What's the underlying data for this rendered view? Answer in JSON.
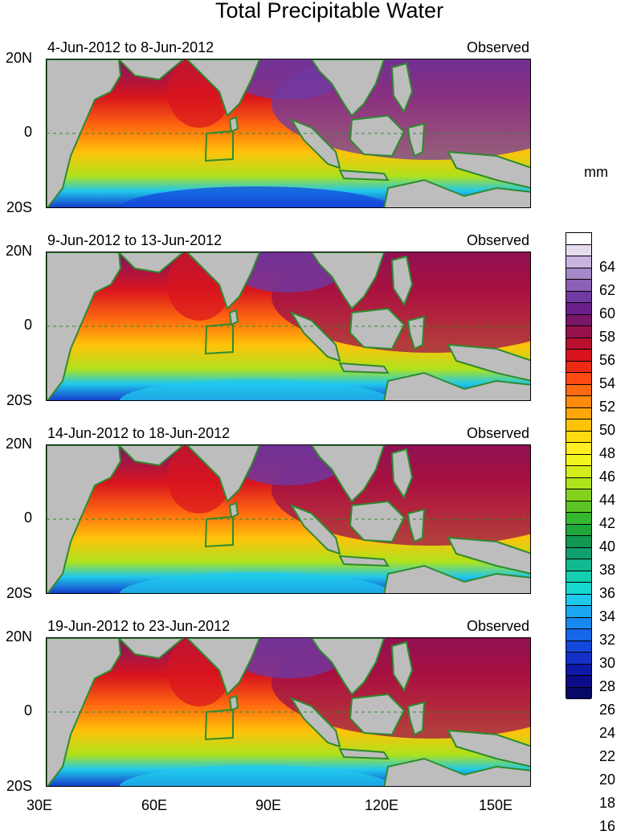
{
  "title": "Total Precipitable Water",
  "units": "mm",
  "panels": [
    {
      "period": "4-Jun-2012 to 8-Jun-2012",
      "label": "Observed"
    },
    {
      "period": "9-Jun-2012 to 13-Jun-2012",
      "label": "Observed"
    },
    {
      "period": "14-Jun-2012 to 18-Jun-2012",
      "label": "Observed"
    },
    {
      "period": "19-Jun-2012 to 23-Jun-2012",
      "label": "Observed"
    }
  ],
  "lat_labels": [
    "20N",
    "0",
    "20S"
  ],
  "lon_labels": [
    "30E",
    "60E",
    "90E",
    "120E",
    "150E"
  ],
  "colorbar_labels": [
    "64",
    "62",
    "60",
    "58",
    "56",
    "54",
    "52",
    "50",
    "48",
    "46",
    "44",
    "42",
    "40",
    "38",
    "36",
    "34",
    "32",
    "30",
    "28",
    "26",
    "24",
    "22",
    "20",
    "18",
    "16"
  ],
  "colors": {
    "land": "#bdbdbd",
    "coast": "#2e8b2e",
    "ramp": [
      "#ffffff",
      "#e6dcf0",
      "#c9b3e0",
      "#a689c9",
      "#8a5fb6",
      "#6f3aa2",
      "#6a1f8a",
      "#7a1666",
      "#98104c",
      "#b8102f",
      "#d8141e",
      "#ee2a15",
      "#ff4a12",
      "#ff6a10",
      "#ff8a0e",
      "#ffa60c",
      "#ffc20a",
      "#ffdc10",
      "#ffee22",
      "#f2f51e",
      "#d4ee1c",
      "#aee21c",
      "#84d21e",
      "#5cc424",
      "#36b82e",
      "#1ea83c",
      "#129850",
      "#10a070",
      "#12b890",
      "#14d0b0",
      "#18d8d0",
      "#20c8ec",
      "#1aa8f0",
      "#1888f0",
      "#1666e8",
      "#1448dc",
      "#1430c8",
      "#1018a8",
      "#0c0c88",
      "#080868"
    ]
  }
}
